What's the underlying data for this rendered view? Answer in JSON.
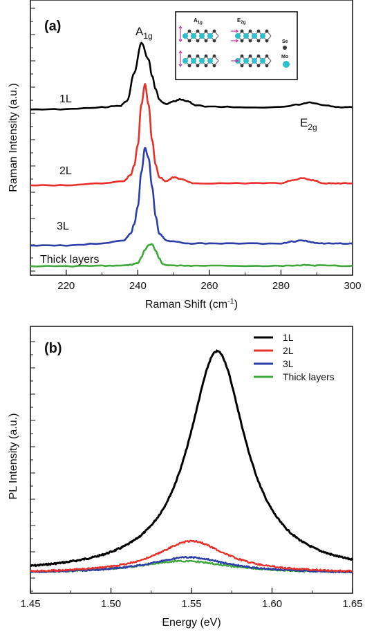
{
  "chart_data": [
    {
      "type": "line",
      "panel_label": "(a)",
      "xlabel": "Raman Shift (cm",
      "xlabel_sup": "-1",
      "xlabel_end": ")",
      "ylabel": "Raman Intensity (a.u.)",
      "xlim": [
        210,
        300
      ],
      "xticks": [
        "220",
        "240",
        "260",
        "280",
        "300"
      ],
      "xtick_values": [
        220,
        240,
        260,
        280,
        300
      ],
      "y_tick_labels": false,
      "peak_labels": {
        "a1g_main": "A",
        "a1g_sub": "1g",
        "e2g_main": "E",
        "e2g_sub": "2g"
      },
      "series": [
        {
          "name": "1L",
          "color": "#000000",
          "x": [
            210,
            220,
            230,
            235,
            237,
            239,
            241,
            243,
            244,
            245,
            246,
            247,
            248,
            250,
            252,
            254,
            256,
            260,
            270,
            280,
            285,
            288,
            292,
            296,
            300
          ],
          "y": [
            0.0,
            0.0,
            0.03,
            0.05,
            0.12,
            0.55,
            1.0,
            0.75,
            0.5,
            0.3,
            0.15,
            0.1,
            0.08,
            0.12,
            0.15,
            0.12,
            0.06,
            0.04,
            0.03,
            0.03,
            0.07,
            0.1,
            0.06,
            0.03,
            0.03
          ]
        },
        {
          "name": "2L",
          "color": "#e8302a",
          "x": [
            210,
            220,
            230,
            236,
            238,
            239,
            240,
            241,
            242,
            243,
            244,
            245,
            246,
            248,
            250,
            252,
            256,
            270,
            280,
            283,
            286,
            289,
            292,
            296,
            300
          ],
          "y": [
            0.0,
            0.0,
            0.02,
            0.04,
            0.1,
            0.2,
            0.4,
            0.8,
            1.0,
            0.8,
            0.45,
            0.2,
            0.08,
            0.04,
            0.08,
            0.06,
            0.02,
            0.02,
            0.02,
            0.05,
            0.07,
            0.05,
            0.02,
            0.02,
            0.02
          ]
        },
        {
          "name": "3L",
          "color": "#2b3ea8",
          "x": [
            210,
            220,
            230,
            236,
            238,
            239,
            240,
            241,
            242,
            243,
            244,
            245,
            246,
            248,
            250,
            254,
            260,
            270,
            280,
            283,
            286,
            289,
            292,
            296,
            300
          ],
          "y": [
            0.0,
            0.0,
            0.02,
            0.05,
            0.12,
            0.22,
            0.4,
            0.75,
            1.0,
            0.9,
            0.6,
            0.3,
            0.12,
            0.05,
            0.04,
            0.02,
            0.02,
            0.02,
            0.02,
            0.04,
            0.05,
            0.03,
            0.02,
            0.02,
            0.02
          ]
        },
        {
          "name": "Thick layers",
          "color": "#3fa83a",
          "x": [
            210,
            220,
            230,
            236,
            238,
            240,
            241,
            242,
            243,
            244,
            245,
            246,
            247,
            248,
            250,
            256,
            270,
            280,
            284,
            287,
            290,
            300
          ],
          "y": [
            0.0,
            0.0,
            0.02,
            0.03,
            0.06,
            0.15,
            0.4,
            0.75,
            0.95,
            1.0,
            0.7,
            0.35,
            0.1,
            0.04,
            0.03,
            0.02,
            0.02,
            0.02,
            0.04,
            0.05,
            0.03,
            0.02
          ]
        }
      ],
      "series_labels": [
        "1L",
        "2L",
        "3L",
        "Thick layers"
      ]
    },
    {
      "type": "line",
      "panel_label": "(b)",
      "xlabel": "Energy (eV)",
      "ylabel": "PL Intensity (a.u.)",
      "xlim": [
        1.45,
        1.65
      ],
      "xticks": [
        "1.45",
        "1.50",
        "1.55",
        "1.60",
        "1.65"
      ],
      "xtick_values": [
        1.45,
        1.5,
        1.55,
        1.6,
        1.65
      ],
      "y_tick_labels": false,
      "legend_position": "top-right",
      "series": [
        {
          "name": "1L",
          "color": "#000000",
          "center": 1.566,
          "height": 1.0,
          "width": 0.0215,
          "baseline": 0.0
        },
        {
          "name": "2L",
          "color": "#e8302a",
          "center": 1.55,
          "height": 0.145,
          "width": 0.026,
          "baseline": 0.0
        },
        {
          "name": "3L",
          "color": "#2b3ea8",
          "center": 1.548,
          "height": 0.072,
          "width": 0.03,
          "baseline": 0.0
        },
        {
          "name": "Thick layers",
          "color": "#3fa83a",
          "center": 1.545,
          "height": 0.055,
          "width": 0.035,
          "baseline": 0.0
        }
      ]
    }
  ],
  "inset": {
    "labels": {
      "a1g_main": "A",
      "a1g_sub": "1g",
      "e2g_main": "E",
      "e2g_sub": "2g",
      "se": "Se",
      "mo": "Mo"
    },
    "colors": {
      "mo": "#2bbfc9",
      "se": "#3a3a3a",
      "arrow": "#c03aa0"
    }
  }
}
